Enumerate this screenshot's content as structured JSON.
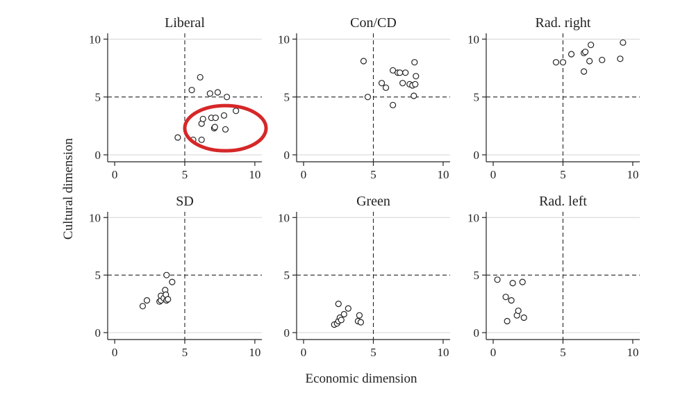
{
  "figure": {
    "xlabel": "Economic dimension",
    "ylabel": "Cultural dimension",
    "highlight_color": "#d62728",
    "reference_value": 5
  },
  "chart_data": [
    {
      "type": "scatter",
      "title": "Liberal",
      "xlim": [
        -0.5,
        10.5
      ],
      "ylim": [
        -0.6,
        10.5
      ],
      "xticks": [
        0,
        5,
        10
      ],
      "yticks": [
        0,
        5,
        10
      ],
      "highlight": {
        "cx": 7.9,
        "cy": 2.3,
        "rx": 2.9,
        "ry": 1.95
      },
      "points": [
        [
          4.5,
          1.5
        ],
        [
          5.5,
          5.6
        ],
        [
          5.6,
          1.3
        ],
        [
          6.1,
          6.7
        ],
        [
          6.2,
          1.3
        ],
        [
          6.2,
          2.7
        ],
        [
          6.3,
          3.1
        ],
        [
          6.8,
          5.3
        ],
        [
          6.9,
          3.2
        ],
        [
          7.1,
          2.3
        ],
        [
          7.15,
          2.4
        ],
        [
          7.2,
          3.2
        ],
        [
          7.35,
          5.4
        ],
        [
          7.8,
          3.4
        ],
        [
          7.9,
          2.2
        ],
        [
          8.0,
          5.0
        ],
        [
          8.65,
          3.8
        ]
      ]
    },
    {
      "type": "scatter",
      "title": "Con/CD",
      "xlim": [
        -0.5,
        10.5
      ],
      "ylim": [
        -0.6,
        10.5
      ],
      "xticks": [
        0,
        5,
        10
      ],
      "yticks": [
        0,
        5,
        10
      ],
      "points": [
        [
          4.3,
          8.1
        ],
        [
          4.6,
          5.0
        ],
        [
          5.6,
          6.2
        ],
        [
          5.9,
          5.8
        ],
        [
          6.4,
          7.3
        ],
        [
          6.4,
          4.3
        ],
        [
          6.75,
          7.1
        ],
        [
          6.9,
          7.1
        ],
        [
          7.1,
          6.2
        ],
        [
          7.3,
          7.1
        ],
        [
          7.6,
          6.1
        ],
        [
          7.8,
          6.0
        ],
        [
          7.9,
          5.1
        ],
        [
          7.95,
          8.0
        ],
        [
          8.0,
          6.1
        ],
        [
          8.05,
          6.8
        ]
      ]
    },
    {
      "type": "scatter",
      "title": "Rad. right",
      "xlim": [
        -0.5,
        10.5
      ],
      "ylim": [
        -0.6,
        10.5
      ],
      "xticks": [
        0,
        5,
        10
      ],
      "yticks": [
        0,
        5,
        10
      ],
      "points": [
        [
          4.5,
          8.0
        ],
        [
          5.0,
          8.0
        ],
        [
          5.6,
          8.7
        ],
        [
          6.5,
          8.8
        ],
        [
          6.5,
          7.2
        ],
        [
          6.6,
          8.9
        ],
        [
          6.9,
          8.1
        ],
        [
          7.0,
          9.5
        ],
        [
          7.8,
          8.2
        ],
        [
          9.1,
          8.3
        ],
        [
          9.3,
          9.7
        ]
      ]
    },
    {
      "type": "scatter",
      "title": "SD",
      "xlim": [
        -0.5,
        10.5
      ],
      "ylim": [
        -0.6,
        10.5
      ],
      "xticks": [
        0,
        5,
        10
      ],
      "yticks": [
        0,
        5,
        10
      ],
      "points": [
        [
          2.0,
          2.3
        ],
        [
          2.3,
          2.8
        ],
        [
          3.2,
          2.7
        ],
        [
          3.3,
          2.8
        ],
        [
          3.3,
          3.2
        ],
        [
          3.5,
          3.0
        ],
        [
          3.6,
          3.7
        ],
        [
          3.65,
          3.3
        ],
        [
          3.7,
          2.8
        ],
        [
          3.7,
          5.0
        ],
        [
          3.8,
          2.9
        ],
        [
          4.1,
          4.4
        ]
      ]
    },
    {
      "type": "scatter",
      "title": "Green",
      "xlim": [
        -0.5,
        10.5
      ],
      "ylim": [
        -0.6,
        10.5
      ],
      "xticks": [
        0,
        5,
        10
      ],
      "yticks": [
        0,
        5,
        10
      ],
      "points": [
        [
          2.2,
          0.7
        ],
        [
          2.4,
          0.8
        ],
        [
          2.5,
          2.5
        ],
        [
          2.5,
          1.0
        ],
        [
          2.6,
          1.3
        ],
        [
          2.7,
          1.1
        ],
        [
          2.9,
          1.6
        ],
        [
          3.2,
          2.1
        ],
        [
          3.9,
          1.0
        ],
        [
          4.0,
          1.5
        ],
        [
          4.1,
          0.9
        ]
      ]
    },
    {
      "type": "scatter",
      "title": "Rad. left",
      "xlim": [
        -0.5,
        10.5
      ],
      "ylim": [
        -0.6,
        10.5
      ],
      "xticks": [
        0,
        5,
        10
      ],
      "yticks": [
        0,
        5,
        10
      ],
      "points": [
        [
          0.3,
          4.6
        ],
        [
          0.9,
          3.1
        ],
        [
          1.0,
          1.0
        ],
        [
          1.3,
          2.8
        ],
        [
          1.4,
          4.3
        ],
        [
          1.7,
          1.5
        ],
        [
          1.8,
          1.9
        ],
        [
          2.1,
          4.4
        ],
        [
          2.2,
          1.3
        ]
      ]
    }
  ]
}
